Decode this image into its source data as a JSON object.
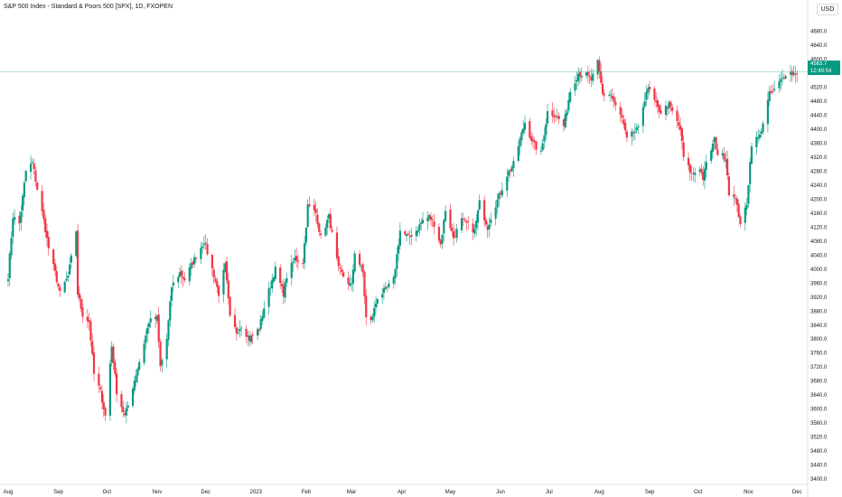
{
  "header": {
    "title": "S&P 500 Index - Standard & Poors 500 [SPX], 1D, FXOPEN",
    "currency": "USD"
  },
  "price_badge": {
    "price": "4563.7",
    "countdown": "12:49:54"
  },
  "colors": {
    "up": "#089981",
    "down": "#f23645",
    "guide_line": "#089981"
  },
  "chart_data": {
    "type": "candlestick",
    "title": "S&P 500 Index - Standard & Poors 500 [SPX], 1D, FXOPEN",
    "ylim": [
      3400,
      4700
    ],
    "y_ticks": [
      "3400.0",
      "3440.0",
      "3480.0",
      "3520.0",
      "3560.0",
      "3600.0",
      "3640.0",
      "3680.0",
      "3720.0",
      "3760.0",
      "3800.0",
      "3840.0",
      "3880.0",
      "3920.0",
      "3960.0",
      "4000.0",
      "4040.0",
      "4080.0",
      "4120.0",
      "4160.0",
      "4200.0",
      "4240.0",
      "4280.0",
      "4320.0",
      "4360.0",
      "4400.0",
      "4440.0",
      "4480.0",
      "4520.0",
      "4560.0",
      "4600.0",
      "4640.0",
      "4680.0"
    ],
    "x_ticks": [
      "Aug",
      "Sep",
      "Oct",
      "Nov",
      "Dec",
      "2023",
      "Feb",
      "Mar",
      "Apr",
      "May",
      "Jun",
      "Jul",
      "Aug",
      "Sep",
      "Oct",
      "Nov",
      "Dec"
    ],
    "last_price": 4563.7,
    "close_path": [
      [
        "2022-08-01",
        3980
      ],
      [
        "2022-08-04",
        4150
      ],
      [
        "2022-08-08",
        4130
      ],
      [
        "2022-08-12",
        4280
      ],
      [
        "2022-08-16",
        4305
      ],
      [
        "2022-08-19",
        4230
      ],
      [
        "2022-08-23",
        4140
      ],
      [
        "2022-08-26",
        4060
      ],
      [
        "2022-08-30",
        3990
      ],
      [
        "2022-09-02",
        3930
      ],
      [
        "2022-09-07",
        3980
      ],
      [
        "2022-09-12",
        4110
      ],
      [
        "2022-09-13",
        3930
      ],
      [
        "2022-09-16",
        3870
      ],
      [
        "2022-09-20",
        3850
      ],
      [
        "2022-09-23",
        3700
      ],
      [
        "2022-09-27",
        3650
      ],
      [
        "2022-09-30",
        3580
      ],
      [
        "2022-10-04",
        3780
      ],
      [
        "2022-10-07",
        3650
      ],
      [
        "2022-10-12",
        3580
      ],
      [
        "2022-10-14",
        3610
      ],
      [
        "2022-10-19",
        3700
      ],
      [
        "2022-10-24",
        3790
      ],
      [
        "2022-10-27",
        3850
      ],
      [
        "2022-11-01",
        3860
      ],
      [
        "2022-11-03",
        3720
      ],
      [
        "2022-11-07",
        3800
      ],
      [
        "2022-11-10",
        3950
      ],
      [
        "2022-11-15",
        3990
      ],
      [
        "2022-11-18",
        3970
      ],
      [
        "2022-11-23",
        4020
      ],
      [
        "2022-11-30",
        4080
      ],
      [
        "2022-12-05",
        4000
      ],
      [
        "2022-12-09",
        3930
      ],
      [
        "2022-12-13",
        4010
      ],
      [
        "2022-12-16",
        3860
      ],
      [
        "2022-12-20",
        3820
      ],
      [
        "2022-12-23",
        3840
      ],
      [
        "2022-12-28",
        3800
      ],
      [
        "2023-01-03",
        3830
      ],
      [
        "2023-01-06",
        3890
      ],
      [
        "2023-01-11",
        3970
      ],
      [
        "2023-01-13",
        4000
      ],
      [
        "2023-01-18",
        3930
      ],
      [
        "2023-01-20",
        3980
      ],
      [
        "2023-01-25",
        4030
      ],
      [
        "2023-01-30",
        4020
      ],
      [
        "2023-02-02",
        4180
      ],
      [
        "2023-02-07",
        4160
      ],
      [
        "2023-02-10",
        4090
      ],
      [
        "2023-02-15",
        4150
      ],
      [
        "2023-02-21",
        4000
      ],
      [
        "2023-02-24",
        3980
      ],
      [
        "2023-03-01",
        3950
      ],
      [
        "2023-03-03",
        4050
      ],
      [
        "2023-03-08",
        3990
      ],
      [
        "2023-03-10",
        3860
      ],
      [
        "2023-03-13",
        3850
      ],
      [
        "2023-03-17",
        3920
      ],
      [
        "2023-03-22",
        3940
      ],
      [
        "2023-03-27",
        3970
      ],
      [
        "2023-03-31",
        4110
      ],
      [
        "2023-04-05",
        4090
      ],
      [
        "2023-04-10",
        4110
      ],
      [
        "2023-04-14",
        4140
      ],
      [
        "2023-04-18",
        4150
      ],
      [
        "2023-04-21",
        4130
      ],
      [
        "2023-04-25",
        4070
      ],
      [
        "2023-04-28",
        4170
      ],
      [
        "2023-05-03",
        4090
      ],
      [
        "2023-05-08",
        4140
      ],
      [
        "2023-05-11",
        4130
      ],
      [
        "2023-05-16",
        4110
      ],
      [
        "2023-05-19",
        4190
      ],
      [
        "2023-05-24",
        4120
      ],
      [
        "2023-05-26",
        4150
      ],
      [
        "2023-06-01",
        4220
      ],
      [
        "2023-06-05",
        4270
      ],
      [
        "2023-06-09",
        4300
      ],
      [
        "2023-06-13",
        4370
      ],
      [
        "2023-06-16",
        4420
      ],
      [
        "2023-06-21",
        4360
      ],
      [
        "2023-06-26",
        4330
      ],
      [
        "2023-06-30",
        4450
      ],
      [
        "2023-07-05",
        4440
      ],
      [
        "2023-07-10",
        4410
      ],
      [
        "2023-07-14",
        4510
      ],
      [
        "2023-07-19",
        4560
      ],
      [
        "2023-07-24",
        4555
      ],
      [
        "2023-07-27",
        4540
      ],
      [
        "2023-07-31",
        4590
      ],
      [
        "2023-08-03",
        4500
      ],
      [
        "2023-08-08",
        4500
      ],
      [
        "2023-08-11",
        4465
      ],
      [
        "2023-08-15",
        4430
      ],
      [
        "2023-08-18",
        4370
      ],
      [
        "2023-08-22",
        4390
      ],
      [
        "2023-08-25",
        4400
      ],
      [
        "2023-08-30",
        4510
      ],
      [
        "2023-09-01",
        4510
      ],
      [
        "2023-09-06",
        4460
      ],
      [
        "2023-09-08",
        4450
      ],
      [
        "2023-09-13",
        4470
      ],
      [
        "2023-09-15",
        4450
      ],
      [
        "2023-09-20",
        4400
      ],
      [
        "2023-09-22",
        4320
      ],
      [
        "2023-09-27",
        4270
      ],
      [
        "2023-10-02",
        4290
      ],
      [
        "2023-10-04",
        4260
      ],
      [
        "2023-10-06",
        4300
      ],
      [
        "2023-10-11",
        4370
      ],
      [
        "2023-10-13",
        4330
      ],
      [
        "2023-10-18",
        4320
      ],
      [
        "2023-10-20",
        4220
      ],
      [
        "2023-10-25",
        4190
      ],
      [
        "2023-10-27",
        4120
      ],
      [
        "2023-10-31",
        4190
      ],
      [
        "2023-11-03",
        4360
      ],
      [
        "2023-11-08",
        4380
      ],
      [
        "2023-11-10",
        4420
      ],
      [
        "2023-11-14",
        4500
      ],
      [
        "2023-11-17",
        4510
      ],
      [
        "2023-11-21",
        4540
      ],
      [
        "2023-11-24",
        4560
      ],
      [
        "2023-11-29",
        4560
      ],
      [
        "2023-12-01",
        4563.7
      ]
    ]
  }
}
